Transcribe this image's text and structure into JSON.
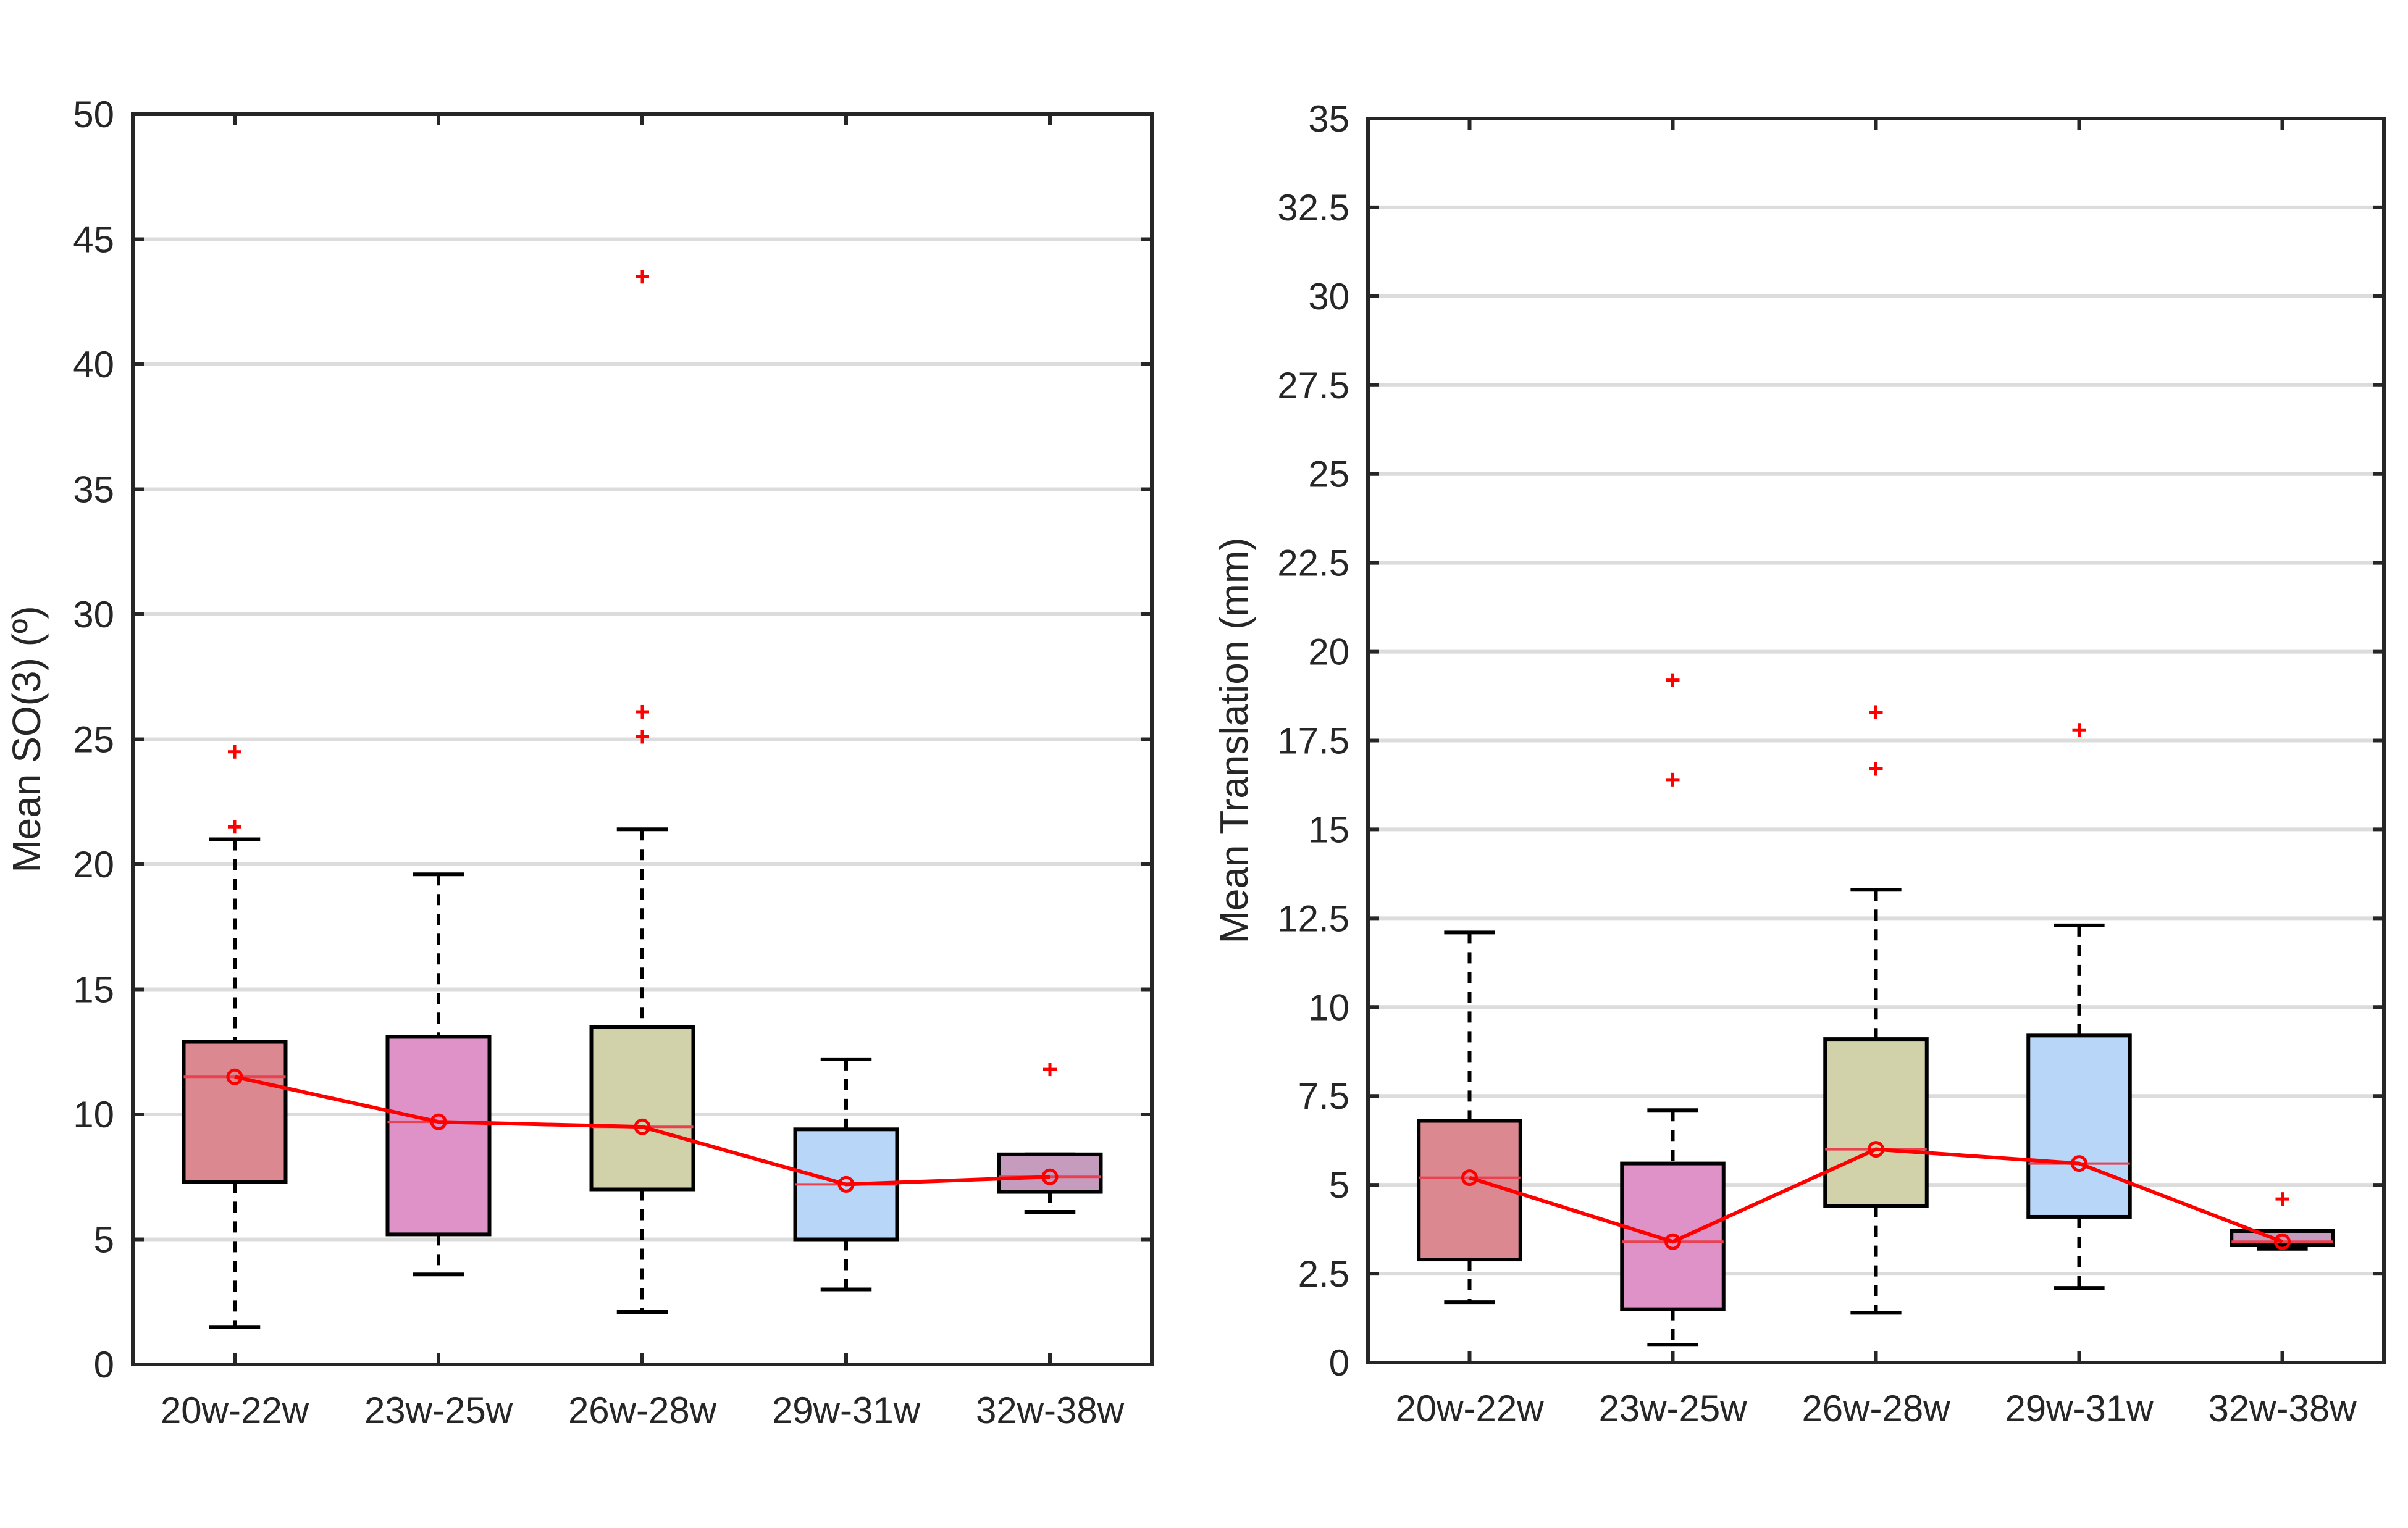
{
  "chart_data": [
    {
      "type": "box",
      "ylabel": "Mean SO(3) (º)",
      "xlabel": "",
      "title": "",
      "ylim": [
        0,
        50
      ],
      "yticks": [
        "0",
        "5",
        "10",
        "15",
        "20",
        "25",
        "30",
        "35",
        "40",
        "45",
        "50"
      ],
      "grid": "horizontal",
      "categories": [
        "20w-22w",
        "23w-25w",
        "26w-28w",
        "29w-31w",
        "32w-38w"
      ],
      "colors": [
        "#dc8891",
        "#df92c8",
        "#d2d2aa",
        "#b8d6f8",
        "#c59cbd"
      ],
      "boxes": [
        {
          "whisker_low": 1.5,
          "q1": 7.3,
          "median": 11.5,
          "q3": 12.9,
          "whisker_high": 21.0,
          "outliers": [
            21.5,
            24.5
          ]
        },
        {
          "whisker_low": 3.6,
          "q1": 5.2,
          "median": 9.7,
          "q3": 13.1,
          "whisker_high": 19.6,
          "outliers": []
        },
        {
          "whisker_low": 2.1,
          "q1": 7.0,
          "median": 9.5,
          "q3": 13.5,
          "whisker_high": 21.4,
          "outliers": [
            25.1,
            26.1,
            43.5
          ]
        },
        {
          "whisker_low": 3.0,
          "q1": 5.0,
          "median": 7.2,
          "q3": 9.4,
          "whisker_high": 12.2,
          "outliers": []
        },
        {
          "whisker_low": 6.1,
          "q1": 6.9,
          "median": 7.5,
          "q3": 8.4,
          "whisker_high": 8.4,
          "outliers": [
            11.8
          ]
        }
      ],
      "mean_line": [
        11.5,
        9.7,
        9.5,
        7.2,
        7.5
      ]
    },
    {
      "type": "box",
      "ylabel": "Mean Translation (mm)",
      "xlabel": "",
      "title": "",
      "ylim": [
        0,
        35
      ],
      "yticks": [
        "0",
        "2.5",
        "5",
        "7.5",
        "10",
        "12.5",
        "15",
        "17.5",
        "20",
        "22.5",
        "25",
        "27.5",
        "30",
        "32.5",
        "35"
      ],
      "grid": "horizontal",
      "categories": [
        "20w-22w",
        "23w-25w",
        "26w-28w",
        "29w-31w",
        "32w-38w"
      ],
      "colors": [
        "#dc8891",
        "#df92c8",
        "#d2d2aa",
        "#b8d6f8",
        "#c59cbd"
      ],
      "boxes": [
        {
          "whisker_low": 1.7,
          "q1": 2.9,
          "median": 5.2,
          "q3": 6.8,
          "whisker_high": 12.1,
          "outliers": []
        },
        {
          "whisker_low": 0.5,
          "q1": 1.5,
          "median": 3.4,
          "q3": 5.6,
          "whisker_high": 7.1,
          "outliers": [
            16.4,
            19.2
          ]
        },
        {
          "whisker_low": 1.4,
          "q1": 4.4,
          "median": 6.0,
          "q3": 9.1,
          "whisker_high": 13.3,
          "outliers": [
            16.7,
            18.3
          ]
        },
        {
          "whisker_low": 2.1,
          "q1": 4.1,
          "median": 5.6,
          "q3": 9.2,
          "whisker_high": 12.3,
          "outliers": [
            17.8
          ]
        },
        {
          "whisker_low": 3.2,
          "q1": 3.3,
          "median": 3.4,
          "q3": 3.7,
          "whisker_high": 3.7,
          "outliers": [
            4.6
          ]
        }
      ],
      "mean_line": [
        5.2,
        3.4,
        6.0,
        5.6,
        3.4
      ]
    }
  ]
}
